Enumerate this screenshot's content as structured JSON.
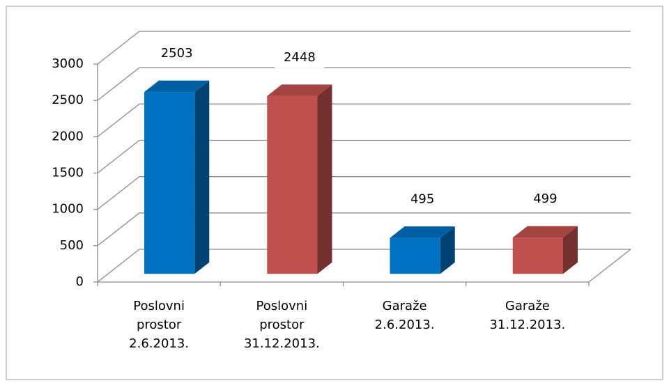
{
  "chart_data": {
    "type": "bar3d",
    "categories": [
      "Poslovni prostor 2.6.2013.",
      "Poslovni prostor 31.12.2013.",
      "Garaže 2.6.2013.",
      "Garaže 31.12.2013."
    ],
    "values": [
      2503,
      2448,
      495,
      499
    ],
    "colors": [
      "#0070c0",
      "#c0504d",
      "#0070c0",
      "#c0504d"
    ],
    "ylim": [
      0,
      3000
    ],
    "yticks": [
      0,
      500,
      1000,
      1500,
      2000,
      2500,
      3000
    ],
    "grid": true
  }
}
